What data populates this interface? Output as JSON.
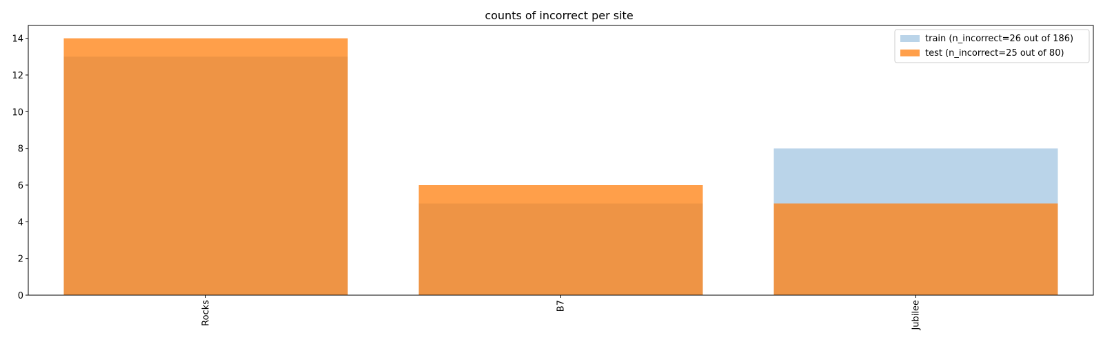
{
  "chart_data": {
    "type": "bar",
    "title": "counts of incorrect per site",
    "xlabel": "",
    "ylabel": "",
    "categories": [
      "Rocks",
      "B7",
      "Jubilee"
    ],
    "series": [
      {
        "name": "train (n_incorrect=26 out of 186)",
        "values": [
          13,
          5,
          8
        ],
        "color": "#a6c8e3",
        "opacity": 0.78
      },
      {
        "name": "test (n_incorrect=25 out of 80)",
        "values": [
          14,
          6,
          5
        ],
        "color": "#ff7f0e",
        "opacity": 0.75
      }
    ],
    "ylim": [
      0,
      14.7
    ],
    "yticks": [
      "0",
      "2",
      "4",
      "6",
      "8",
      "10",
      "12",
      "14"
    ],
    "grid": false,
    "legend_position": "top-right"
  }
}
